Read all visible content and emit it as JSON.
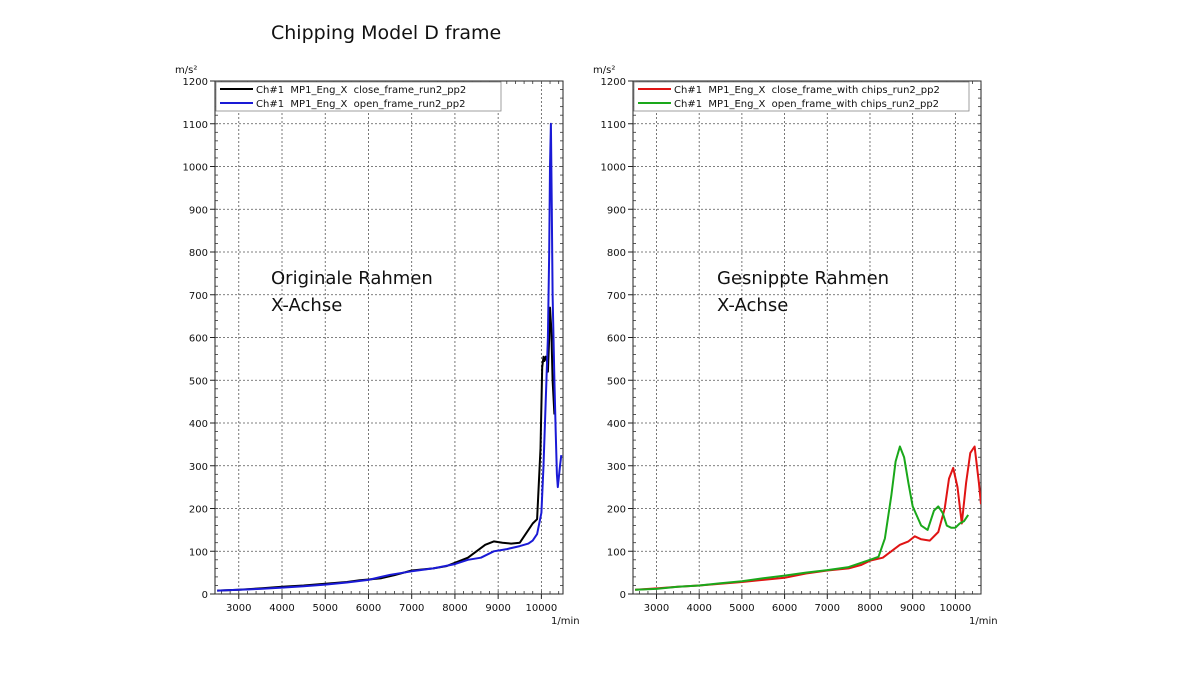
{
  "slide": {
    "title": "Chipping Model D frame"
  },
  "chart_data": [
    {
      "type": "line",
      "ylabel": "m/s²",
      "xlabel": "1/min",
      "xlim": [
        2450,
        10500
      ],
      "ylim": [
        0,
        1200
      ],
      "xticks": [
        3000,
        4000,
        5000,
        6000,
        7000,
        8000,
        9000,
        10000
      ],
      "yticks": [
        0,
        100,
        200,
        300,
        400,
        500,
        600,
        700,
        800,
        900,
        1000,
        1100,
        1200
      ],
      "grid": true,
      "legend": "top-left",
      "annotation": [
        "Originale Rahmen",
        "X-Achse"
      ],
      "series": [
        {
          "name": "Ch#1  MP1_Eng_X  close_frame_run2_pp2",
          "color": "#000000",
          "x": [
            2500,
            3000,
            3500,
            4000,
            4500,
            5000,
            5500,
            5800,
            6000,
            6300,
            6600,
            7000,
            7500,
            7800,
            8000,
            8300,
            8500,
            8700,
            8900,
            9100,
            9300,
            9500,
            9600,
            9700,
            9800,
            9900,
            9980,
            10020,
            10050,
            10070,
            10100,
            10130,
            10150,
            10180,
            10200,
            10230,
            10260,
            10300
          ],
          "y": [
            8,
            10,
            13,
            17,
            20,
            24,
            28,
            32,
            34,
            37,
            44,
            55,
            60,
            65,
            73,
            85,
            100,
            115,
            123,
            120,
            118,
            120,
            135,
            150,
            165,
            175,
            340,
            530,
            555,
            545,
            555,
            545,
            520,
            600,
            670,
            620,
            500,
            420
          ]
        },
        {
          "name": "Ch#1  MP1_Eng_X  open_frame_run2_pp2",
          "color": "#1a1ad6",
          "x": [
            2500,
            3000,
            3500,
            4000,
            4500,
            5000,
            5500,
            6000,
            6500,
            7000,
            7500,
            8000,
            8300,
            8600,
            8900,
            9200,
            9500,
            9700,
            9800,
            9900,
            10000,
            10050,
            10100,
            10150,
            10180,
            10200,
            10220,
            10240,
            10260,
            10280,
            10300,
            10330,
            10360,
            10380,
            10400,
            10430,
            10460
          ],
          "y": [
            8,
            10,
            12,
            15,
            18,
            22,
            27,
            33,
            45,
            53,
            60,
            70,
            80,
            85,
            100,
            105,
            112,
            118,
            125,
            140,
            190,
            300,
            450,
            600,
            800,
            1000,
            1100,
            900,
            700,
            600,
            500,
            380,
            280,
            250,
            270,
            300,
            325
          ]
        }
      ]
    },
    {
      "type": "line",
      "ylabel": "m/s²",
      "xlabel": "1/min",
      "xlim": [
        2450,
        10600
      ],
      "ylim": [
        0,
        1200
      ],
      "xticks": [
        3000,
        4000,
        5000,
        6000,
        7000,
        8000,
        9000,
        10000
      ],
      "yticks": [
        0,
        100,
        200,
        300,
        400,
        500,
        600,
        700,
        800,
        900,
        1000,
        1100,
        1200
      ],
      "grid": true,
      "legend": "top-left",
      "annotation": [
        "Gesnippte Rahmen",
        "X-Achse"
      ],
      "series": [
        {
          "name": "Ch#1  MP1_Eng_X  close_frame_with chips_run2_pp2",
          "color": "#e01414",
          "x": [
            2500,
            3000,
            3500,
            4000,
            4500,
            5000,
            5500,
            6000,
            6500,
            7000,
            7500,
            7800,
            8000,
            8300,
            8500,
            8700,
            8900,
            9050,
            9200,
            9400,
            9600,
            9750,
            9850,
            9950,
            10050,
            10150,
            10250,
            10350,
            10450,
            10550,
            10600
          ],
          "y": [
            10,
            13,
            17,
            20,
            24,
            28,
            33,
            38,
            48,
            55,
            60,
            68,
            78,
            85,
            100,
            115,
            123,
            135,
            128,
            125,
            145,
            200,
            270,
            295,
            250,
            165,
            260,
            330,
            345,
            260,
            210
          ]
        },
        {
          "name": "Ch#1  MP1_Eng_X  open_frame_with chips_run2_pp2",
          "color": "#1aa81a",
          "x": [
            2500,
            3000,
            3500,
            4000,
            4500,
            5000,
            5500,
            6000,
            6500,
            7000,
            7500,
            8000,
            8200,
            8350,
            8500,
            8600,
            8700,
            8800,
            8900,
            9000,
            9200,
            9350,
            9500,
            9600,
            9700,
            9800,
            9900,
            10000,
            10100,
            10200,
            10300
          ],
          "y": [
            10,
            12,
            17,
            20,
            25,
            30,
            37,
            43,
            50,
            56,
            63,
            80,
            87,
            130,
            230,
            310,
            345,
            320,
            260,
            205,
            160,
            150,
            195,
            205,
            190,
            160,
            155,
            155,
            165,
            170,
            185
          ]
        }
      ]
    }
  ]
}
